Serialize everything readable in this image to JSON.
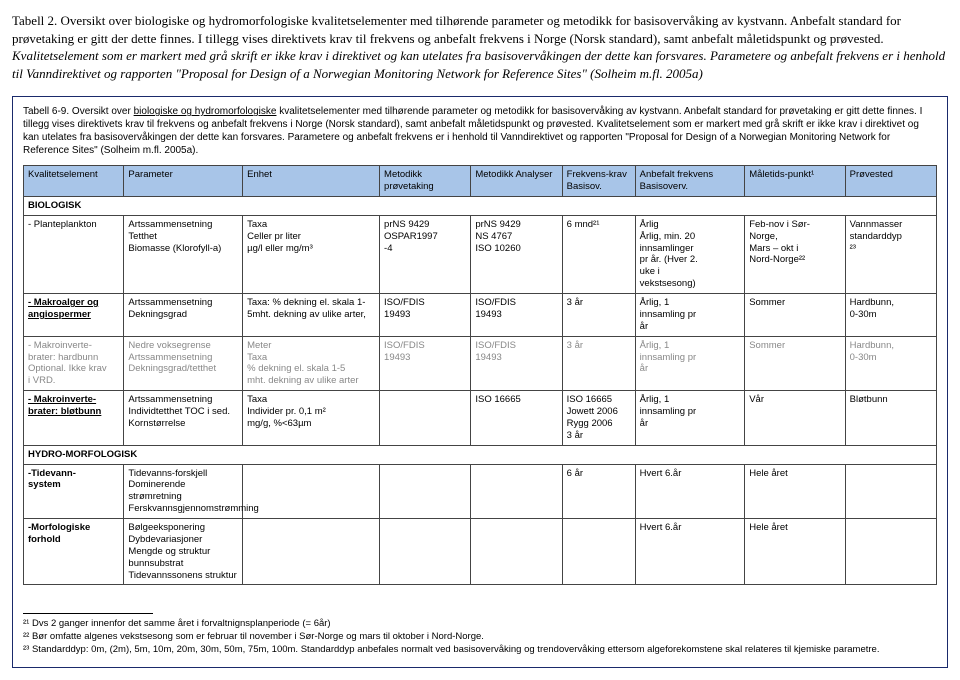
{
  "outerCaption": "Tabell 2. Oversikt over biologiske og hydromorfologiske kvalitetselementer med tilhørende parameter og metodikk for basisovervåking av kystvann. Anbefalt standard for prøvetaking er gitt der dette finnes. I tillegg vises direktivets krav til frekvens og anbefalt frekvens i Norge (Norsk standard), samt anbefalt måletidspunkt og prøvested. <i>Kvalitetselement som er markert med grå skrift er ikke krav i direktivet og kan utelates fra basisovervåkingen der dette kan forsvares. Parametere og anbefalt frekvens er i henhold til Vanndirektivet og rapporten \"Proposal for Design of a Norwegian Monitoring Network for Reference Sites\" (Solheim m.fl. 2005a)</i>",
  "innerCaption": "Tabell 6-9. Oversikt over <u>biologiske og hydromorfologiske</u> kvalitetselementer med tilhørende parameter og metodikk for basisovervåking av kystvann. Anbefalt standard for prøvetaking er gitt dette finnes. I tillegg vises direktivets krav til frekvens og anbefalt frekvens i Norge (Norsk standard), samt anbefalt måletidspunkt og prøvested. Kvalitetselement som er markert med grå skrift er ikke krav i direktivet og kan utelates fra basisovervåkingen der dette kan forsvares. Parametere og anbefalt frekvens er i henhold til Vanndirektivet og rapporten \"Proposal for Design of a Norwegian Monitoring Network for Reference Sites\" (Solheim m.fl. 2005a).",
  "headers": [
    "Kvalitetselement",
    "Parameter",
    "Enhet",
    "Metodikk prøvetaking",
    "Metodikk Analyser",
    "Frekvens-krav Basisov.",
    "Anbefalt frekvens Basisoverv.",
    "Måletids-punkt¹",
    "Prøvested"
  ],
  "headerBgColor": "#a8c5e8",
  "borderColor": "#444",
  "rows": [
    {
      "section": "BIOLOGISK"
    },
    {
      "cells": [
        "- Planteplankton",
        "Artssammensetning\nTetthet\nBiomasse (Klorofyll-a)",
        "Taxa\nCeller pr liter\nµg/l eller mg/m³",
        "prNS 9429\nOSPAR1997\n-4",
        "prNS 9429\nNS 4767\nISO 10260",
        "6 mnd²¹",
        "Årlig\nÅrlig, min. 20\ninnsamlinger\npr år. (Hver 2.\nuke i\nvekstsesong)",
        "Feb-nov i Sør-\nNorge,\nMars – okt i\nNord-Norge²²",
        "Vannmasser\nstandarddyp\n²³"
      ]
    },
    {
      "cells": [
        "<b><u>- Makroalger og</u></b>\n<b><u>angiospermer</u></b>",
        "Artssammensetning\nDekningsgrad",
        "Taxa: % dekning el. skala 1-\n5mht. dekning av ulike arter,",
        "ISO/FDIS\n19493",
        "ISO/FDIS\n19493",
        "3 år",
        "Årlig, 1\ninnsamling pr\når",
        "Sommer",
        "Hardbunn,\n0-30m"
      ]
    },
    {
      "cells": [
        "<span class='gray'>- Makroinverte-<br>brater: hardbunn<br>Optional. Ikke krav<br>i VRD.</span>",
        "<span class='gray'>Nedre voksegrense<br>Artssammensetning<br>Dekningsgrad/tetthet</span>",
        "<span class='gray'>Meter<br>Taxa<br>% dekning el. skala 1-5<br>mht. dekning av ulike arter</span>",
        "<span class='gray'>ISO/FDIS<br>19493</span>",
        "<span class='gray'>ISO/FDIS<br>19493</span>",
        "<span class='gray'>3 år</span>",
        "<span class='gray'>Årlig, 1<br>innsamling pr<br>år</span>",
        "<span class='gray'>Sommer</span>",
        "<span class='gray'>Hardbunn,<br>0-30m</span>"
      ]
    },
    {
      "cells": [
        "<b><u>- Makroinverte-</u></b>\n<b><u>brater: bløtbunn</u></b>",
        "Artssammensetning\nIndividtetthet TOC i sed.\nKornstørrelse",
        "Taxa\nIndivider pr. 0,1 m²\nmg/g, %<63µm",
        "",
        "ISO 16665",
        "ISO 16665\nJowett 2006\nRygg 2006\n3 år",
        "Årlig, 1\ninnsamling pr\når",
        "Vår",
        "Bløtbunn"
      ]
    },
    {
      "section": "HYDRO-MORFOLOGISK"
    },
    {
      "cells": [
        "<b>-Tidevann-</b>\n<b>system</b>",
        "Tidevanns-forskjell\nDominerende strømretning\nFerskvannsgjennomstrømming",
        "",
        "",
        "",
        "6 år",
        "Hvert 6.år",
        "Hele året",
        ""
      ]
    },
    {
      "cells": [
        "<b>-Morfologiske</b>\n<b>forhold</b>",
        "Bølgeeksponering\nDybdevariasjoner\nMengde og struktur bunnsubstrat\nTidevannssonens struktur",
        "",
        "",
        "",
        "",
        "Hvert 6.år",
        "Hele året",
        ""
      ]
    }
  ],
  "footnotes": [
    "²¹ Dvs 2 ganger innenfor det samme året i forvaltnignsplanperiode (= 6år)",
    "²² Bør omfatte algenes vekstsesong som er februar til november i Sør-Norge og mars til oktober i Nord-Norge.",
    "²³ Standarddyp: 0m, (2m), 5m, 10m, 20m, 30m, 50m, 75m, 100m. Standarddyp anbefales normalt ved basisovervåking og trendovervåking ettersom algeforekomstene skal relateres til kjemiske parametre."
  ]
}
